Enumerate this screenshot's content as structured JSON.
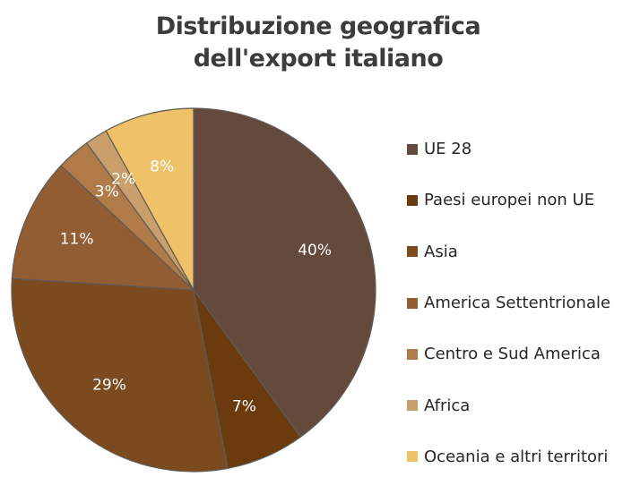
{
  "chart_data": {
    "type": "pie",
    "title_lines": [
      "Distribuzione geografica",
      "dell'export italiano"
    ],
    "categories": [
      "UE 28",
      "Paesi europei non UE",
      "Asia",
      "America Settentrionale",
      "Centro e Sud America",
      "Africa",
      "Oceania e altri territori"
    ],
    "values": [
      40,
      7,
      29,
      11,
      3,
      2,
      8
    ],
    "data_labels": [
      "40%",
      "7%",
      "29%",
      "11%",
      "3%",
      "2%",
      "8%"
    ],
    "colors": [
      "#634a3c",
      "#6b3b0e",
      "#7b4a1e",
      "#935d34",
      "#b07a49",
      "#c9a06b",
      "#efc269"
    ],
    "legend_position": "right"
  }
}
